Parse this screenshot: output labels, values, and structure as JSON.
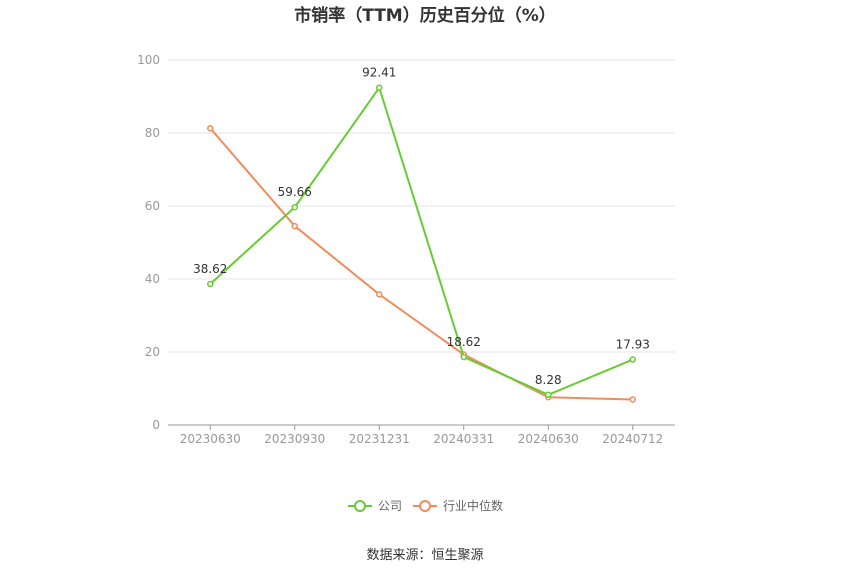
{
  "chart_data": {
    "type": "line",
    "title": "市销率（TTM）历史百分位（%）",
    "categories": [
      "20230630",
      "20230930",
      "20231231",
      "20240331",
      "20240630",
      "20240712"
    ],
    "ylim": [
      0,
      100
    ],
    "yticks": [
      0,
      20,
      40,
      60,
      80,
      100
    ],
    "grid": true,
    "legend_position": "bottom",
    "series": [
      {
        "name": "公司",
        "color": "#66cc33",
        "values": [
          38.62,
          59.66,
          92.41,
          18.62,
          8.28,
          17.93
        ],
        "labels": [
          "38.62",
          "59.66",
          "92.41",
          "18.62",
          "8.28",
          "17.93"
        ]
      },
      {
        "name": "行业中位数",
        "color": "#f08c5a",
        "values": [
          81.3,
          54.5,
          35.8,
          19.3,
          7.6,
          7.0
        ]
      }
    ],
    "source": "数据来源：恒生聚源"
  }
}
